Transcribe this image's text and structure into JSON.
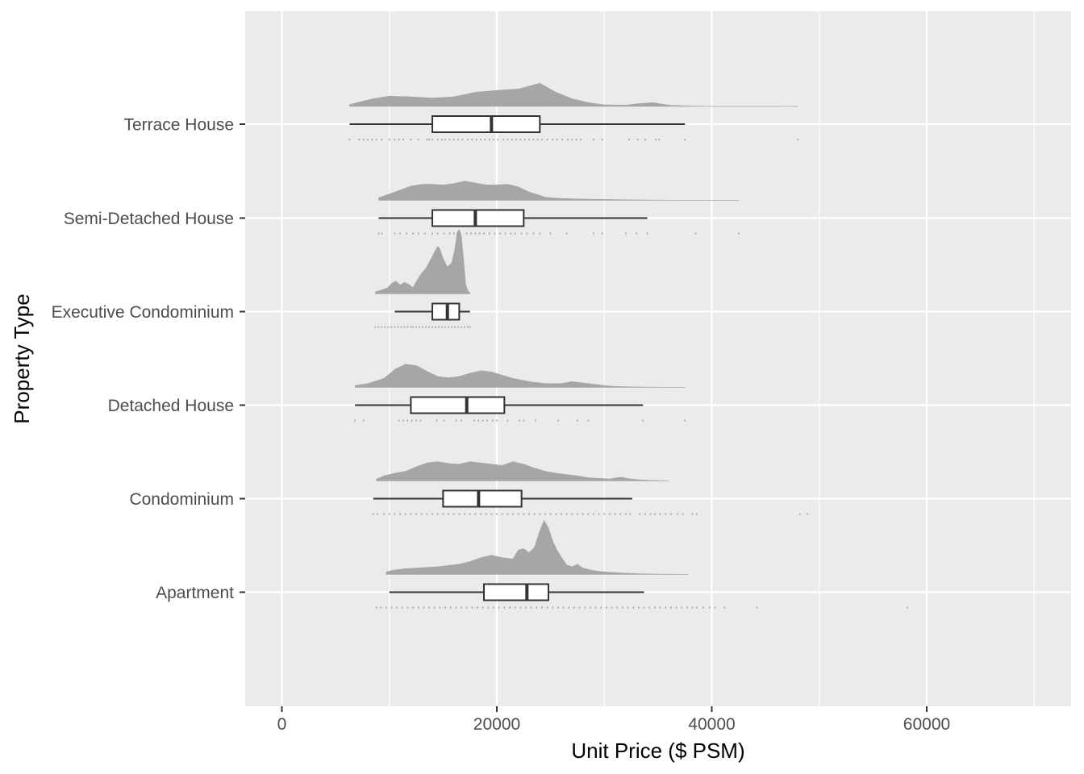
{
  "chart_data": {
    "type": "raincloud",
    "title": "",
    "xlabel": "Unit Price ($ PSM)",
    "ylabel": "Property Type",
    "xlim": [
      -3500,
      73500
    ],
    "x_ticks": [
      0,
      20000,
      40000,
      60000
    ],
    "x_tick_labels": [
      "0",
      "20000",
      "40000",
      "60000"
    ],
    "grid": true,
    "colors": {
      "panel": "#ebebeb",
      "grid": "#ffffff",
      "density": "#a6a6a6",
      "box_fill": "#ffffff",
      "box_line": "#333333",
      "points": "#a6a6a6"
    },
    "categories": [
      "Terrace House",
      "Semi-Detached House",
      "Executive Condominium",
      "Detached House",
      "Condominium",
      "Apartment"
    ],
    "series": [
      {
        "category": "Terrace House",
        "box": {
          "lower_whisker": 6300,
          "q1": 14000,
          "median": 19500,
          "q3": 24000,
          "upper_whisker": 37500
        },
        "density_range": [
          6300,
          48000
        ],
        "density": [
          [
            6300,
            0.03
          ],
          [
            7000,
            0.06
          ],
          [
            8500,
            0.12
          ],
          [
            10000,
            0.16
          ],
          [
            12000,
            0.15
          ],
          [
            14000,
            0.13
          ],
          [
            16000,
            0.15
          ],
          [
            18000,
            0.22
          ],
          [
            20000,
            0.25
          ],
          [
            22000,
            0.27
          ],
          [
            24000,
            0.36
          ],
          [
            25500,
            0.22
          ],
          [
            27000,
            0.12
          ],
          [
            28500,
            0.06
          ],
          [
            30000,
            0.025
          ],
          [
            32000,
            0.02
          ],
          [
            33000,
            0.04
          ],
          [
            34500,
            0.06
          ],
          [
            36000,
            0.02
          ],
          [
            38000,
            0.008
          ],
          [
            39500,
            0.004
          ],
          [
            40000,
            0
          ],
          [
            46500,
            0
          ],
          [
            46600,
            0.003
          ],
          [
            48000,
            0.003
          ]
        ],
        "points": [
          6300,
          7200,
          7600,
          8000,
          8400,
          8800,
          9300,
          10000,
          10500,
          10900,
          11300,
          12000,
          12700,
          13500,
          13700,
          14000,
          14500,
          14900,
          15200,
          15600,
          16000,
          16400,
          16800,
          17300,
          17700,
          18100,
          18500,
          18900,
          19300,
          19700,
          20100,
          20600,
          21000,
          21400,
          21800,
          22200,
          22600,
          23000,
          23400,
          23800,
          24200,
          24700,
          25200,
          25600,
          26100,
          26600,
          27000,
          27400,
          27800,
          29000,
          29800,
          32300,
          33100,
          33800,
          34800,
          35100,
          37500,
          48000
        ]
      },
      {
        "category": "Semi-Detached House",
        "box": {
          "lower_whisker": 9000,
          "q1": 14000,
          "median": 18000,
          "q3": 22500,
          "upper_whisker": 34000
        },
        "density_range": [
          9000,
          42500
        ],
        "density": [
          [
            9000,
            0.04
          ],
          [
            10000,
            0.1
          ],
          [
            11000,
            0.16
          ],
          [
            12000,
            0.22
          ],
          [
            13000,
            0.25
          ],
          [
            14000,
            0.25
          ],
          [
            15000,
            0.24
          ],
          [
            16000,
            0.26
          ],
          [
            17000,
            0.3
          ],
          [
            18000,
            0.27
          ],
          [
            19000,
            0.24
          ],
          [
            20000,
            0.24
          ],
          [
            21000,
            0.25
          ],
          [
            22000,
            0.21
          ],
          [
            23000,
            0.13
          ],
          [
            24500,
            0.05
          ],
          [
            26000,
            0.03
          ],
          [
            28000,
            0.02
          ],
          [
            30000,
            0.015
          ],
          [
            32000,
            0.01
          ],
          [
            34000,
            0.006
          ],
          [
            36000,
            0.004
          ],
          [
            38000,
            0.003
          ],
          [
            40000,
            0.002
          ],
          [
            42500,
            0.001
          ]
        ],
        "points": [
          9000,
          9300,
          10500,
          11000,
          11600,
          12200,
          12700,
          13300,
          14000,
          14500,
          15100,
          15600,
          16000,
          16600,
          17200,
          17600,
          18000,
          18400,
          18800,
          19300,
          19800,
          20300,
          20800,
          21300,
          21700,
          22300,
          22800,
          23400,
          24000,
          25000,
          26500,
          29000,
          29800,
          32000,
          33000,
          34000,
          38500,
          42500
        ]
      },
      {
        "category": "Executive Condominium",
        "box": {
          "lower_whisker": 10500,
          "q1": 14000,
          "median": 15400,
          "q3": 16500,
          "upper_whisker": 17500
        },
        "density_range": [
          8700,
          17500
        ],
        "density": [
          [
            8700,
            0.03
          ],
          [
            9200,
            0.06
          ],
          [
            9800,
            0.09
          ],
          [
            10200,
            0.16
          ],
          [
            10600,
            0.2
          ],
          [
            11000,
            0.14
          ],
          [
            11400,
            0.18
          ],
          [
            11800,
            0.15
          ],
          [
            12200,
            0.1
          ],
          [
            12600,
            0.22
          ],
          [
            13000,
            0.32
          ],
          [
            13400,
            0.4
          ],
          [
            13800,
            0.52
          ],
          [
            14200,
            0.65
          ],
          [
            14500,
            0.74
          ],
          [
            14700,
            0.7
          ],
          [
            15000,
            0.55
          ],
          [
            15400,
            0.42
          ],
          [
            15800,
            0.48
          ],
          [
            16100,
            0.7
          ],
          [
            16300,
            0.95
          ],
          [
            16500,
            1.0
          ],
          [
            16700,
            0.9
          ],
          [
            16900,
            0.55
          ],
          [
            17100,
            0.15
          ],
          [
            17300,
            0.05
          ],
          [
            17500,
            0.02
          ]
        ],
        "points": [
          8700,
          9000,
          9300,
          9600,
          9900,
          10200,
          10500,
          10800,
          11100,
          11400,
          11700,
          12000,
          12200,
          12500,
          12800,
          13100,
          13400,
          13700,
          14000,
          14300,
          14600,
          14900,
          15200,
          15500,
          15800,
          16100,
          16400,
          16700,
          17000,
          17300,
          17500
        ]
      },
      {
        "category": "Detached House",
        "box": {
          "lower_whisker": 6800,
          "q1": 12000,
          "median": 17200,
          "q3": 20700,
          "upper_whisker": 33600
        },
        "density_range": [
          6800,
          37500
        ],
        "density": [
          [
            6800,
            0.03
          ],
          [
            8000,
            0.06
          ],
          [
            9500,
            0.14
          ],
          [
            10500,
            0.28
          ],
          [
            11500,
            0.36
          ],
          [
            12500,
            0.34
          ],
          [
            13500,
            0.25
          ],
          [
            14500,
            0.17
          ],
          [
            15500,
            0.15
          ],
          [
            16500,
            0.17
          ],
          [
            17500,
            0.22
          ],
          [
            18500,
            0.26
          ],
          [
            19500,
            0.24
          ],
          [
            20500,
            0.19
          ],
          [
            21500,
            0.14
          ],
          [
            23000,
            0.09
          ],
          [
            24500,
            0.06
          ],
          [
            26000,
            0.06
          ],
          [
            27000,
            0.09
          ],
          [
            28000,
            0.07
          ],
          [
            29000,
            0.05
          ],
          [
            30000,
            0.03
          ],
          [
            31000,
            0.015
          ],
          [
            33000,
            0.008
          ],
          [
            35000,
            0.004
          ],
          [
            37500,
            0.002
          ]
        ],
        "points": [
          6800,
          7600,
          10900,
          11300,
          11700,
          12100,
          12500,
          12900,
          14400,
          15100,
          16200,
          16700,
          17900,
          18300,
          18700,
          19100,
          19600,
          20000,
          21000,
          22100,
          22500,
          23600,
          25700,
          27500,
          28500,
          33600,
          37500
        ]
      },
      {
        "category": "Condominium",
        "box": {
          "lower_whisker": 8500,
          "q1": 15000,
          "median": 18300,
          "q3": 22300,
          "upper_whisker": 32600
        },
        "density_range": [
          8800,
          36000
        ],
        "density": [
          [
            8800,
            0.03
          ],
          [
            9500,
            0.08
          ],
          [
            10500,
            0.12
          ],
          [
            11500,
            0.15
          ],
          [
            12500,
            0.22
          ],
          [
            13500,
            0.28
          ],
          [
            14500,
            0.3
          ],
          [
            15500,
            0.27
          ],
          [
            16500,
            0.26
          ],
          [
            17500,
            0.3
          ],
          [
            18500,
            0.28
          ],
          [
            19500,
            0.26
          ],
          [
            20500,
            0.24
          ],
          [
            21500,
            0.3
          ],
          [
            22500,
            0.26
          ],
          [
            23500,
            0.2
          ],
          [
            24500,
            0.15
          ],
          [
            25500,
            0.12
          ],
          [
            26500,
            0.1
          ],
          [
            27500,
            0.08
          ],
          [
            28500,
            0.05
          ],
          [
            29500,
            0.04
          ],
          [
            30500,
            0.03
          ],
          [
            31500,
            0.06
          ],
          [
            32500,
            0.03
          ],
          [
            33500,
            0.015
          ],
          [
            35000,
            0.006
          ],
          [
            36000,
            0.003
          ]
        ],
        "points": [
          8500,
          8900,
          9500,
          10000,
          10500,
          11000,
          11500,
          12000,
          12500,
          13000,
          13500,
          14000,
          14500,
          15000,
          15500,
          16000,
          16500,
          17000,
          17500,
          18000,
          18500,
          19000,
          19500,
          20000,
          20500,
          21000,
          21500,
          22000,
          22500,
          23000,
          23500,
          24000,
          24500,
          25000,
          25500,
          26000,
          26500,
          27000,
          27500,
          28000,
          28500,
          29000,
          29500,
          30000,
          30500,
          31000,
          31500,
          32000,
          32400,
          33300,
          33800,
          34300,
          34700,
          35200,
          35700,
          36200,
          36800,
          37300,
          38200,
          38600,
          48200,
          48900
        ]
      },
      {
        "category": "Apartment",
        "box": {
          "lower_whisker": 10000,
          "q1": 18800,
          "median": 22800,
          "q3": 24800,
          "upper_whisker": 33700
        },
        "density_range": [
          9700,
          37800
        ],
        "density": [
          [
            9700,
            0.04
          ],
          [
            10500,
            0.07
          ],
          [
            11500,
            0.09
          ],
          [
            12500,
            0.1
          ],
          [
            13500,
            0.11
          ],
          [
            14500,
            0.12
          ],
          [
            15500,
            0.14
          ],
          [
            16500,
            0.16
          ],
          [
            17500,
            0.2
          ],
          [
            18500,
            0.26
          ],
          [
            19500,
            0.3
          ],
          [
            20500,
            0.26
          ],
          [
            21500,
            0.24
          ],
          [
            22000,
            0.38
          ],
          [
            22500,
            0.4
          ],
          [
            23000,
            0.34
          ],
          [
            23500,
            0.42
          ],
          [
            24000,
            0.68
          ],
          [
            24400,
            0.84
          ],
          [
            24800,
            0.72
          ],
          [
            25200,
            0.52
          ],
          [
            25600,
            0.38
          ],
          [
            26000,
            0.27
          ],
          [
            26500,
            0.15
          ],
          [
            27000,
            0.12
          ],
          [
            27500,
            0.16
          ],
          [
            28000,
            0.1
          ],
          [
            29000,
            0.06
          ],
          [
            30000,
            0.04
          ],
          [
            31000,
            0.03
          ],
          [
            32000,
            0.02
          ],
          [
            33000,
            0.012
          ],
          [
            35000,
            0.006
          ],
          [
            37800,
            0.003
          ]
        ],
        "points": [
          8800,
          9200,
          9700,
          10200,
          10700,
          11200,
          11700,
          12200,
          12700,
          13200,
          13700,
          14200,
          14700,
          15200,
          15700,
          16200,
          16700,
          17200,
          17700,
          18200,
          18700,
          19200,
          19700,
          20200,
          20700,
          21200,
          21700,
          22200,
          22700,
          23200,
          23700,
          24200,
          24700,
          25200,
          25700,
          26200,
          26700,
          27200,
          27700,
          28200,
          28700,
          29200,
          29700,
          30200,
          30700,
          31200,
          31700,
          32200,
          32700,
          33200,
          33700,
          34200,
          34700,
          35200,
          35700,
          36200,
          36700,
          37200,
          37700,
          38200,
          38600,
          39200,
          39800,
          40300,
          41200,
          44200,
          58200
        ]
      }
    ]
  }
}
